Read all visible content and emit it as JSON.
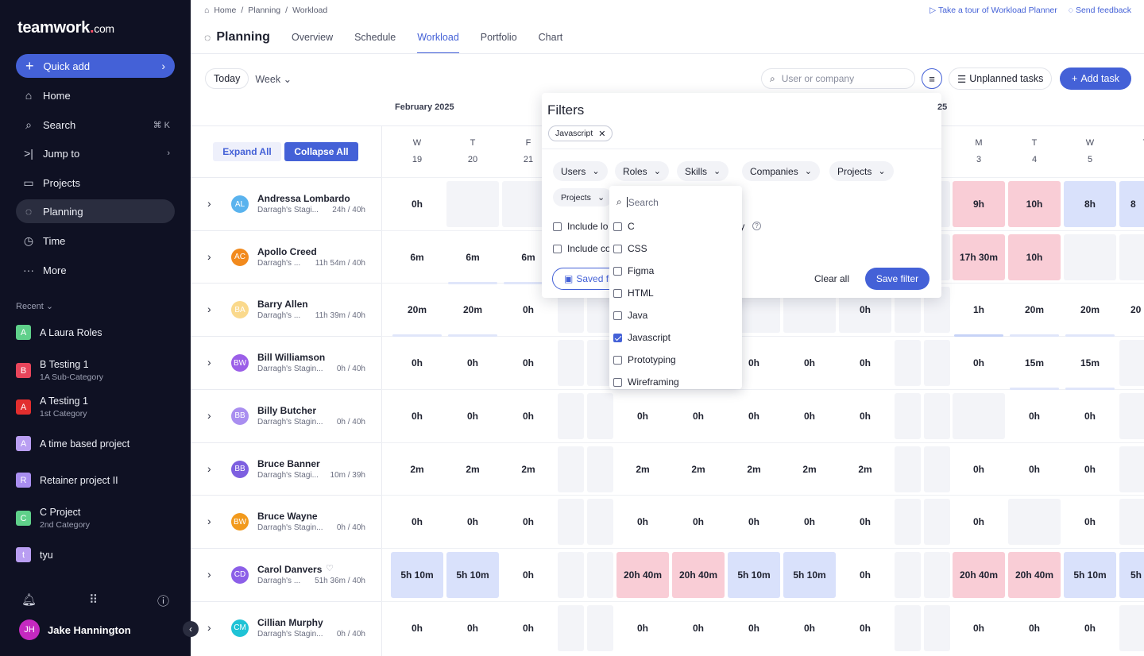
{
  "brand": {
    "name": "teamwork",
    "dot": ".",
    "tld": "com"
  },
  "sidebar": {
    "quick_add": "Quick add",
    "items": [
      {
        "label": "Home",
        "icon": "home-icon",
        "glyph": "⌂"
      },
      {
        "label": "Search",
        "icon": "search-icon",
        "glyph": "⌕",
        "extra": "⌘ K"
      },
      {
        "label": "Jump to",
        "icon": "jump-icon",
        "glyph": ">|",
        "extra": "›"
      },
      {
        "label": "Projects",
        "icon": "folder-icon",
        "glyph": "▭"
      },
      {
        "label": "Planning",
        "icon": "planning-icon",
        "glyph": "◌"
      },
      {
        "label": "Time",
        "icon": "clock-icon",
        "glyph": "◷"
      },
      {
        "label": "More",
        "icon": "more-icon",
        "glyph": "···"
      }
    ],
    "recent_header": "Recent ⌄",
    "recent": [
      {
        "letter": "A",
        "title": "A Laura Roles",
        "sub": "",
        "color": "#5fd08a"
      },
      {
        "letter": "B",
        "title": "B Testing 1",
        "sub": "1A Sub-Category",
        "color": "#e8455b"
      },
      {
        "letter": "A",
        "title": "A Testing 1",
        "sub": "1st Category",
        "color": "#e22e2e"
      },
      {
        "letter": "A",
        "title": "A time based project",
        "sub": "",
        "color": "#b99ef2"
      },
      {
        "letter": "R",
        "title": "Retainer project II",
        "sub": "",
        "color": "#a98ef0"
      },
      {
        "letter": "C",
        "title": "C Project",
        "sub": "2nd Category",
        "color": "#5fd08a"
      },
      {
        "letter": "t",
        "title": "tyu",
        "sub": "",
        "color": "#b99ef2"
      }
    ],
    "user": {
      "initials": "JH",
      "name": "Jake Hannington"
    }
  },
  "breadcrumb": [
    "Home",
    "/",
    "Planning",
    "/",
    "Workload"
  ],
  "top_links": {
    "tour": "Take a tour of Workload Planner",
    "feedback": "Send feedback"
  },
  "page_title": "Planning",
  "tabs": [
    "Overview",
    "Schedule",
    "Workload",
    "Portfolio",
    "Chart"
  ],
  "toolbar": {
    "today": "Today",
    "week": "Week",
    "search_placeholder": "User or company",
    "unplanned": "Unplanned tasks",
    "add_task": "Add task"
  },
  "month_label": "February 2025",
  "month_label_2": "25",
  "grid_buttons": {
    "expand": "Expand All",
    "collapse": "Collapse All"
  },
  "days": [
    {
      "d": "W",
      "n": "19"
    },
    {
      "d": "T",
      "n": "20"
    },
    {
      "d": "F",
      "n": "21"
    },
    {
      "d": "M",
      "n": "3"
    },
    {
      "d": "T",
      "n": "4"
    },
    {
      "d": "W",
      "n": "5"
    },
    {
      "d": "T",
      "n": ""
    }
  ],
  "people": [
    {
      "initials": "AL",
      "color": "#5ab3ee",
      "name": "Andressa Lombardo",
      "sub": "Darragh's Stagi...",
      "cap": "24h / 40h"
    },
    {
      "initials": "AC",
      "color": "#f28a1d",
      "name": "Apollo Creed",
      "sub": "Darragh's ...",
      "cap": "11h 54m / 40h"
    },
    {
      "initials": "BA",
      "color": "#fad98c",
      "name": "Barry Allen",
      "sub": "Darragh's ...",
      "cap": "11h 39m / 40h"
    },
    {
      "initials": "BW",
      "color": "#9b5fe8",
      "name": "Bill Williamson",
      "sub": "Darragh's Stagin...",
      "cap": "0h / 40h"
    },
    {
      "initials": "BB",
      "color": "#a98ef0",
      "name": "Billy Butcher",
      "sub": "Darragh's Stagin...",
      "cap": "0h / 40h"
    },
    {
      "initials": "BB",
      "color": "#7d5fe0",
      "name": "Bruce Banner",
      "sub": "Darragh's Stagi...",
      "cap": "10m / 39h"
    },
    {
      "initials": "BW",
      "color": "#f29a1d",
      "name": "Bruce Wayne",
      "sub": "Darragh's Stagin...",
      "cap": "0h / 40h"
    },
    {
      "initials": "CD",
      "color": "#8c5fe8",
      "name": "Carol Danvers",
      "sub": "Darragh's ...",
      "cap": "51h 36m / 40h"
    },
    {
      "initials": "CM",
      "color": "#1fc3d6",
      "name": "Cillian Murphy",
      "sub": "Darragh's Stagin...",
      "cap": "0h / 40h"
    }
  ],
  "grid_values": [
    {
      "r": 0,
      "cells": [
        [
          "0h",
          ""
        ],
        [
          "",
          "e"
        ],
        [
          "",
          "e"
        ],
        [
          "9h",
          "red"
        ],
        [
          "10h",
          "red"
        ],
        [
          "8h",
          "blue"
        ]
      ]
    },
    {
      "r": 1,
      "cells": [
        [
          "6m",
          ""
        ],
        [
          "6m",
          ""
        ],
        [
          "6m",
          ""
        ],
        [
          "17h 30m",
          "red"
        ],
        [
          "10h",
          "red"
        ],
        [
          "",
          "e"
        ]
      ]
    },
    {
      "r": 2,
      "cells": [
        [
          "20m",
          ""
        ],
        [
          "20m",
          ""
        ],
        [
          "0h",
          ""
        ],
        [
          "1h",
          ""
        ],
        [
          "20m",
          ""
        ],
        [
          "20m",
          ""
        ]
      ]
    },
    {
      "r": 3,
      "cells": [
        [
          "0h",
          ""
        ],
        [
          "0h",
          ""
        ],
        [
          "0h",
          ""
        ],
        [
          "0h",
          ""
        ],
        [
          "15m",
          ""
        ],
        [
          "15m",
          ""
        ]
      ]
    },
    {
      "r": 4,
      "cells": [
        [
          "0h",
          ""
        ],
        [
          "0h",
          ""
        ],
        [
          "0h",
          ""
        ],
        [
          "",
          "e"
        ],
        [
          "0h",
          ""
        ],
        [
          "0h",
          ""
        ]
      ]
    },
    {
      "r": 5,
      "cells": [
        [
          "2m",
          ""
        ],
        [
          "2m",
          ""
        ],
        [
          "2m",
          ""
        ],
        [
          "0h",
          ""
        ],
        [
          "0h",
          ""
        ],
        [
          "0h",
          ""
        ]
      ]
    },
    {
      "r": 6,
      "cells": [
        [
          "0h",
          ""
        ],
        [
          "0h",
          ""
        ],
        [
          "0h",
          ""
        ],
        [
          "0h",
          ""
        ],
        [
          "",
          "e"
        ],
        [
          "0h",
          ""
        ]
      ]
    },
    {
      "r": 7,
      "cells": [
        [
          "5h 10m",
          "blue"
        ],
        [
          "5h 10m",
          "blue"
        ],
        [
          "0h",
          ""
        ],
        [
          "20h 40m",
          "red"
        ],
        [
          "20h 40m",
          "red"
        ],
        [
          "5h 10m",
          "blue"
        ]
      ]
    },
    {
      "r": 8,
      "cells": [
        [
          "0h",
          ""
        ],
        [
          "0h",
          ""
        ],
        [
          "0h",
          ""
        ],
        [
          "0h",
          ""
        ],
        [
          "0h",
          ""
        ],
        [
          "0h",
          ""
        ]
      ]
    }
  ],
  "mid_values": [
    [
      "",
      "",
      "",
      "",
      "",
      ""
    ],
    [
      "",
      "",
      "",
      "",
      "",
      ""
    ],
    [
      "",
      "",
      "",
      "",
      "",
      "0h"
    ],
    [
      "0h",
      "0h",
      "0h",
      "0h",
      "0h",
      ""
    ],
    [
      "0h",
      "0h",
      "0h",
      "0h",
      "0h",
      ""
    ],
    [
      "2m",
      "2m",
      "2m",
      "2m",
      "2m",
      ""
    ],
    [
      "0h",
      "0h",
      "0h",
      "0h",
      "0h",
      ""
    ],
    [
      "20h 40m",
      "20h 40m",
      "5h 10m",
      "5h 10m",
      "0h",
      ""
    ],
    [
      "0h",
      "0h",
      "0h",
      "0h",
      "0h",
      ""
    ]
  ],
  "edge_values": [
    "8",
    "",
    "20",
    "",
    "",
    "",
    "",
    "5h",
    ""
  ],
  "filters": {
    "title": "Filters",
    "chip": "Javascript",
    "pills": [
      "Users",
      "Roles",
      "Skills",
      "Companies",
      "Projects"
    ],
    "sub_pill": "Projects",
    "check1": "Include lo",
    "check2": "Include co",
    "partial_text": "ty",
    "saved": "Saved fi",
    "clear_all": "Clear all",
    "save_filter": "Save filter"
  },
  "skills_dropdown": {
    "search_placeholder": "Search",
    "options": [
      {
        "label": "C",
        "checked": false
      },
      {
        "label": "CSS",
        "checked": false
      },
      {
        "label": "Figma",
        "checked": false
      },
      {
        "label": "HTML",
        "checked": false
      },
      {
        "label": "Java",
        "checked": false
      },
      {
        "label": "Javascript",
        "checked": true
      },
      {
        "label": "Prototyping",
        "checked": false
      },
      {
        "label": "Wireframing",
        "checked": false
      }
    ]
  },
  "colors": {
    "accent": "#4461d7",
    "sidebar_bg": "#0f1123",
    "over": "#f9cdd6",
    "under": "#d9e1fb"
  }
}
